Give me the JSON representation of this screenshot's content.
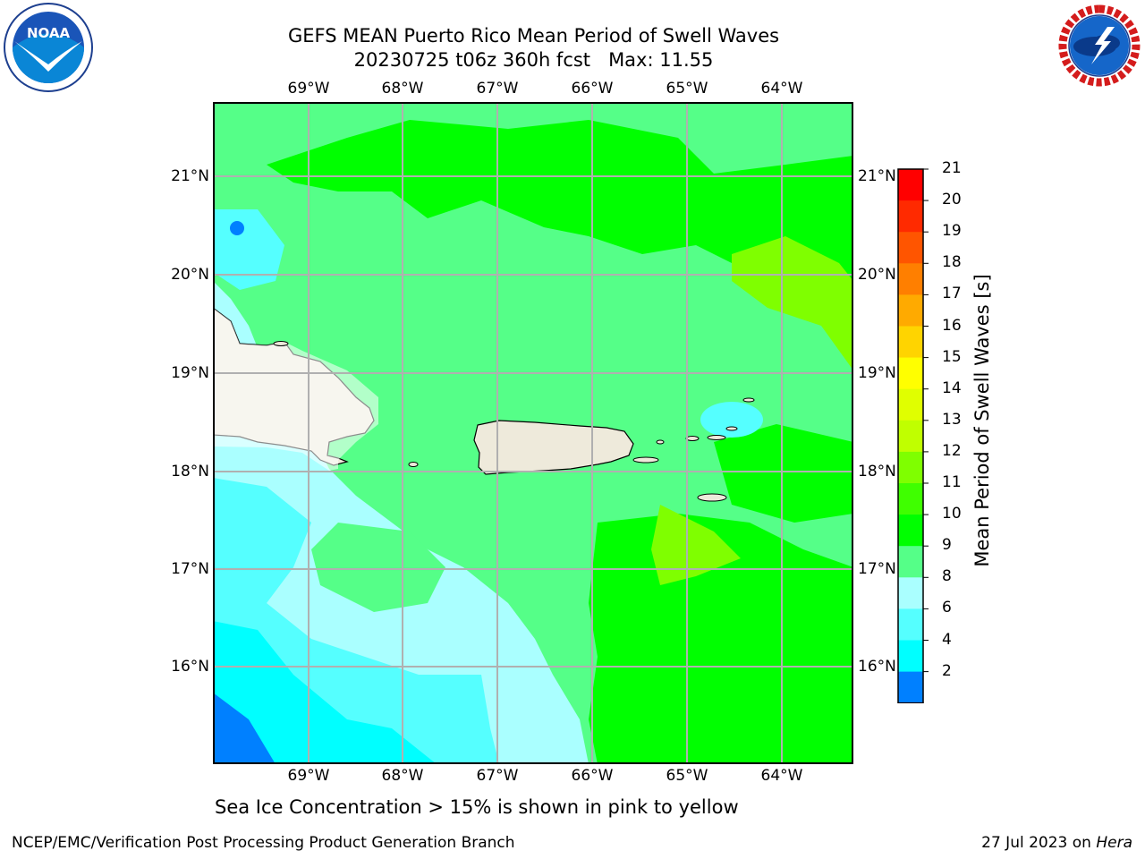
{
  "title": {
    "line1": "GEFS MEAN Puerto Rico Mean Period of Swell Waves",
    "line2": "20230725 t06z 360h fcst   Max: 11.55"
  },
  "map": {
    "lon_labels": [
      "69°W",
      "68°W",
      "67°W",
      "66°W",
      "65°W",
      "64°W"
    ],
    "lat_labels": [
      "21°N",
      "20°N",
      "19°N",
      "18°N",
      "17°N",
      "16°N"
    ],
    "land_color": "#eeeadb",
    "grid_color": "#b0b0b0"
  },
  "colorbar": {
    "title": "Mean Period of Swell Waves [s]",
    "ticks": [
      "21",
      "20",
      "19",
      "18",
      "17",
      "16",
      "15",
      "14",
      "13",
      "12",
      "11",
      "10",
      "9",
      "8",
      "6",
      "4",
      "2"
    ],
    "colors_top_to_bottom": [
      "#ff0000",
      "#ff2a00",
      "#ff5500",
      "#ff7f00",
      "#ffaa00",
      "#ffd400",
      "#ffff00",
      "#e0ff00",
      "#c0ff00",
      "#7fff00",
      "#3fff00",
      "#00ff00",
      "#55ff88",
      "#aaffff",
      "#55ffff",
      "#00ffff",
      "#0080ff"
    ],
    "extend_color": "#0000ff"
  },
  "ice_note": "Sea Ice Concentration > 15% is shown in pink to yellow",
  "footer": {
    "left": "NCEP/EMC/Verification Post Processing Product Generation Branch",
    "date": "27 Jul 2023 on ",
    "host": "Hera"
  },
  "logos": {
    "noaa_icon": "noaa-logo-icon",
    "noaa_text": "NOAA",
    "nws_icon": "nws-logo-icon",
    "nws_text": "NATIONAL WEATHER SERVICE"
  }
}
